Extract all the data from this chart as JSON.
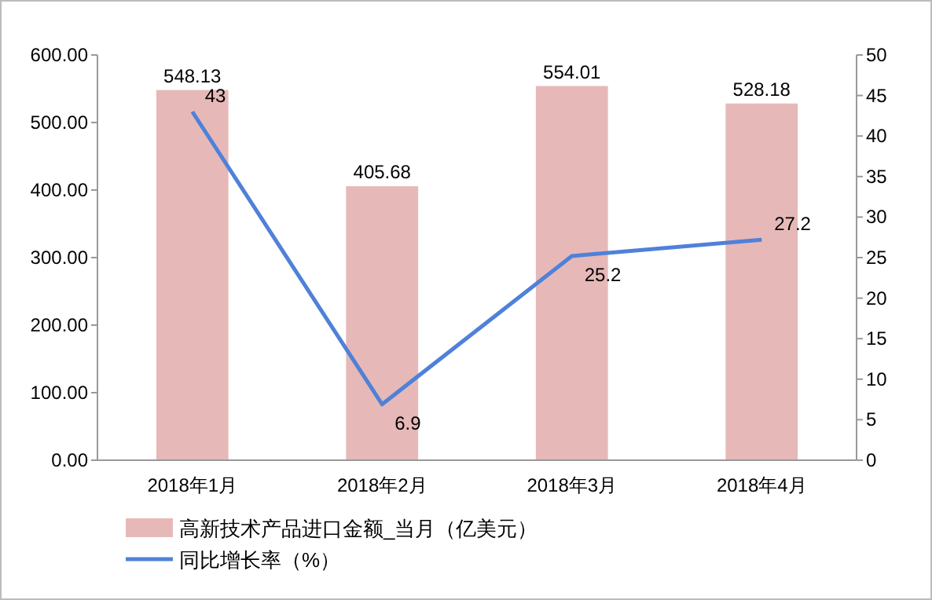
{
  "chart_data": {
    "type": "bar",
    "categories": [
      "2018年1月",
      "2018年2月",
      "2018年3月",
      "2018年4月"
    ],
    "series": [
      {
        "name": "高新技术产品进口金额_当月（亿美元）",
        "color": "#e6b9b8",
        "values": [
          548.13,
          405.68,
          554.01,
          528.18
        ]
      },
      {
        "name": "同比增长率（%）",
        "type": "line",
        "axis": "y2",
        "color": "#4f81d9",
        "values": [
          43,
          6.9,
          25.2,
          27.2
        ]
      }
    ],
    "ylim": [
      0,
      600
    ],
    "yticks": [
      {
        "value": 0,
        "label": "0.00"
      },
      {
        "value": 100,
        "label": "100.00"
      },
      {
        "value": 200,
        "label": "200.00"
      },
      {
        "value": 300,
        "label": "300.00"
      },
      {
        "value": 400,
        "label": "400.00"
      },
      {
        "value": 500,
        "label": "500.00"
      },
      {
        "value": 600,
        "label": "600.00"
      }
    ],
    "y2lim": [
      0,
      50
    ],
    "y2ticks": [
      0,
      5,
      10,
      15,
      20,
      25,
      30,
      35,
      40,
      45,
      50
    ],
    "data_labels": true,
    "legend": "bottom left",
    "grid": false,
    "marker": "none",
    "line_style": "solid"
  }
}
